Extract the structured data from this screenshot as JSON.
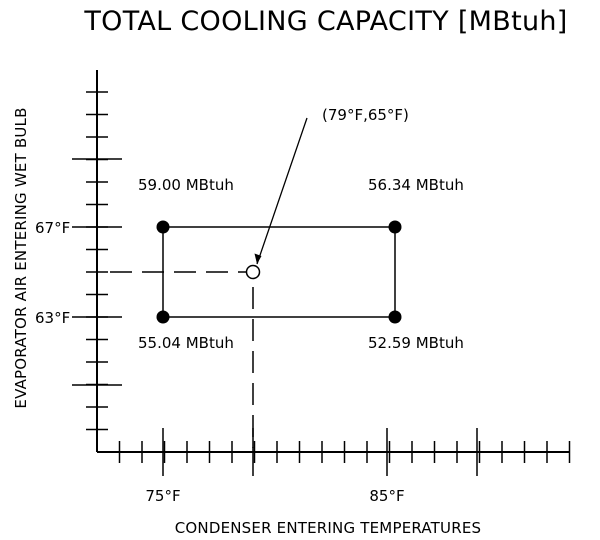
{
  "title": "TOTAL COOLING CAPACITY [MBtuh]",
  "xlabel": "CONDENSER ENTERING TEMPERATURES",
  "ylabel": "EVAPORATOR AIR ENTERING WET BULB",
  "x_ticks": [
    "75°F",
    "85°F"
  ],
  "y_ticks": [
    "67°F",
    "63°F"
  ],
  "interpolation_point_label": "(79°F,65°F)",
  "corner_values": {
    "top_left": "59.00 MBtuh",
    "top_right": "56.34 MBtuh",
    "bottom_left": "55.04 MBtuh",
    "bottom_right": "52.59 MBtuh"
  }
}
